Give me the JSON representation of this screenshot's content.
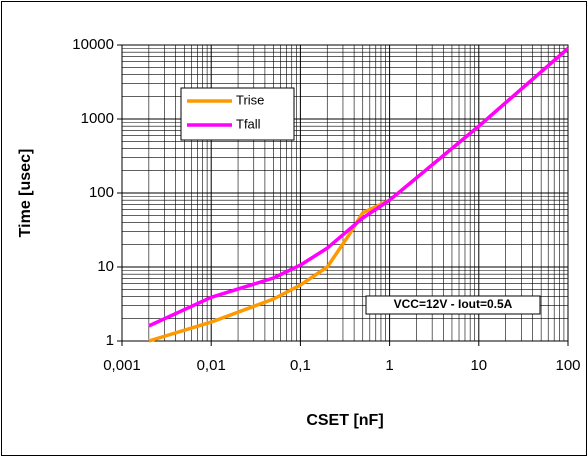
{
  "chart_data": {
    "type": "line",
    "x_label": "CSET [nF]",
    "y_label": "Time [usec]",
    "annotation": "VCC=12V - Iout=0.5A",
    "log_x": true,
    "log_y": true,
    "grid": true,
    "minor_grid": true,
    "legend": "upper left",
    "series": [
      {
        "name": "Trise",
        "color": "#ff9900",
        "x": [
          0.002,
          0.01,
          0.05,
          0.1,
          0.2,
          0.35,
          0.5,
          1,
          10,
          100
        ],
        "values": [
          1.0,
          1.8,
          3.7,
          5.7,
          10,
          27,
          54,
          80,
          800,
          9000
        ]
      },
      {
        "name": "Tfall",
        "color": "#ff00ff",
        "x": [
          0.002,
          0.01,
          0.05,
          0.1,
          0.2,
          0.5,
          1,
          10,
          100
        ],
        "values": [
          1.6,
          3.9,
          7.1,
          10.6,
          18,
          46,
          80,
          800,
          9000
        ]
      }
    ],
    "xlim": [
      0.001,
      100
    ],
    "xticks": [
      {
        "value": 0.001,
        "label": "0,001"
      },
      {
        "value": 0.01,
        "label": "0,01"
      },
      {
        "value": 0.1,
        "label": "0,1"
      },
      1,
      10,
      100
    ],
    "ylim": [
      1,
      10000
    ],
    "yticks": [
      1,
      10,
      100,
      1000,
      10000
    ]
  }
}
